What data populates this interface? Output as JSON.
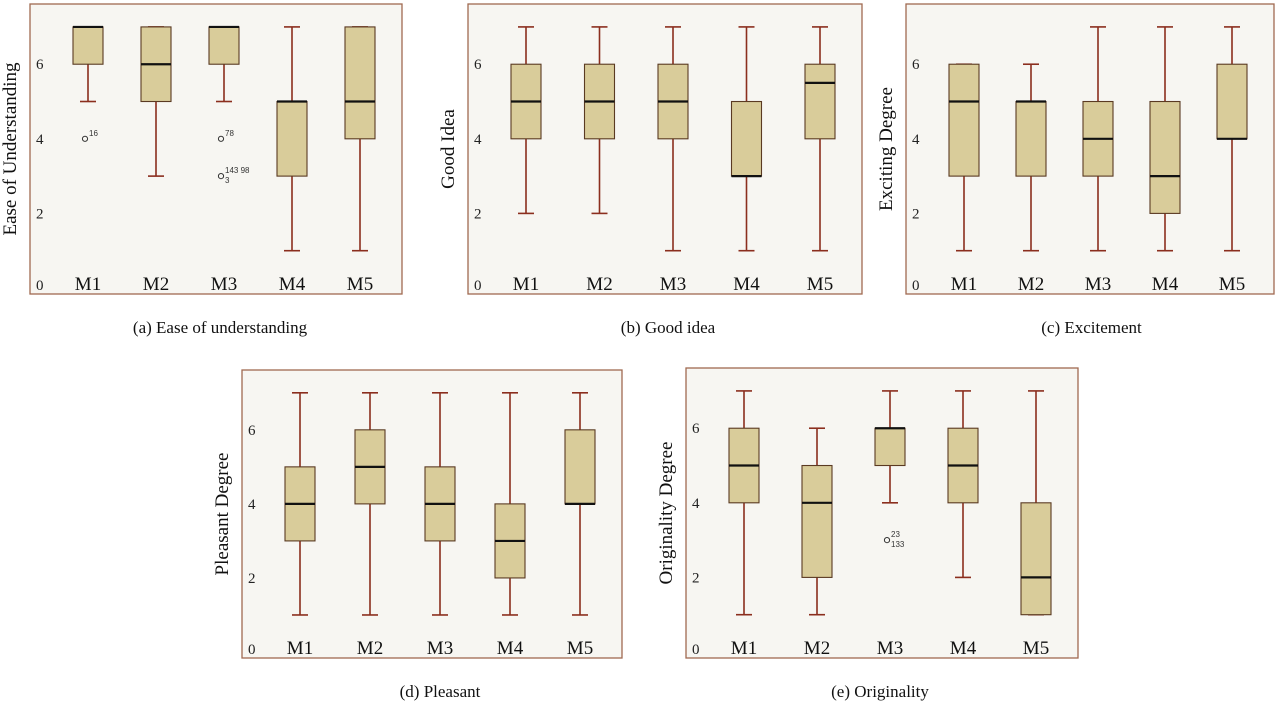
{
  "chart_data": [
    {
      "type": "box",
      "caption": "(a)  Ease of understanding",
      "ylabel": "Ease of Understanding",
      "yticks": [
        "0",
        "2",
        "4",
        "6"
      ],
      "ylim": [
        0,
        7.4
      ],
      "categories": [
        "M1",
        "M2",
        "M3",
        "M4",
        "M5"
      ],
      "boxes": [
        {
          "min": 5,
          "q1": 6,
          "median": 7,
          "q3": 7,
          "max": 7,
          "outliers": [
            {
              "value": 4,
              "label": "16"
            }
          ]
        },
        {
          "min": 3,
          "q1": 5,
          "median": 6,
          "q3": 7,
          "max": 7,
          "outliers": []
        },
        {
          "min": 5,
          "q1": 6,
          "median": 7,
          "q3": 7,
          "max": 7,
          "outliers": [
            {
              "value": 4,
              "label": "78"
            },
            {
              "value": 3,
              "label": "143 98"
            },
            {
              "value": 3,
              "label": "3"
            }
          ]
        },
        {
          "min": 1,
          "q1": 3,
          "median": 5,
          "q3": 5,
          "max": 7,
          "outliers": []
        },
        {
          "min": 1,
          "q1": 4,
          "median": 5,
          "q3": 7,
          "max": 7,
          "outliers": []
        }
      ]
    },
    {
      "type": "box",
      "caption": "(b)  Good idea",
      "ylabel": "Good Idea",
      "yticks": [
        "0",
        "2",
        "4",
        "6"
      ],
      "ylim": [
        0,
        7.4
      ],
      "categories": [
        "M1",
        "M2",
        "M3",
        "M4",
        "M5"
      ],
      "boxes": [
        {
          "min": 2,
          "q1": 4,
          "median": 5,
          "q3": 6,
          "max": 7,
          "outliers": []
        },
        {
          "min": 2,
          "q1": 4,
          "median": 5,
          "q3": 6,
          "max": 7,
          "outliers": []
        },
        {
          "min": 1,
          "q1": 4,
          "median": 5,
          "q3": 6,
          "max": 7,
          "outliers": []
        },
        {
          "min": 1,
          "q1": 3,
          "median": 3,
          "q3": 5,
          "max": 7,
          "outliers": []
        },
        {
          "min": 1,
          "q1": 4,
          "median": 5.5,
          "q3": 6,
          "max": 7,
          "outliers": []
        }
      ]
    },
    {
      "type": "box",
      "caption": "(c)  Excitement",
      "ylabel": "Exciting Degree",
      "yticks": [
        "0",
        "2",
        "4",
        "6"
      ],
      "ylim": [
        0,
        7.4
      ],
      "categories": [
        "M1",
        "M2",
        "M3",
        "M4",
        "M5"
      ],
      "boxes": [
        {
          "min": 1,
          "q1": 3,
          "median": 5,
          "q3": 6,
          "max": 6,
          "outliers": []
        },
        {
          "min": 1,
          "q1": 3,
          "median": 5,
          "q3": 5,
          "max": 6,
          "outliers": []
        },
        {
          "min": 1,
          "q1": 3,
          "median": 4,
          "q3": 5,
          "max": 7,
          "outliers": []
        },
        {
          "min": 1,
          "q1": 2,
          "median": 3,
          "q3": 5,
          "max": 7,
          "outliers": []
        },
        {
          "min": 1,
          "q1": 4,
          "median": 4,
          "q3": 6,
          "max": 7,
          "outliers": []
        }
      ]
    },
    {
      "type": "box",
      "caption": "(d)  Pleasant",
      "ylabel": "Pleasant Degree",
      "yticks": [
        "0",
        "2",
        "4",
        "6"
      ],
      "ylim": [
        0,
        7.4
      ],
      "categories": [
        "M1",
        "M2",
        "M3",
        "M4",
        "M5"
      ],
      "boxes": [
        {
          "min": 1,
          "q1": 3,
          "median": 4,
          "q3": 5,
          "max": 7,
          "outliers": []
        },
        {
          "min": 1,
          "q1": 4,
          "median": 5,
          "q3": 6,
          "max": 7,
          "outliers": []
        },
        {
          "min": 1,
          "q1": 3,
          "median": 4,
          "q3": 5,
          "max": 7,
          "outliers": []
        },
        {
          "min": 1,
          "q1": 2,
          "median": 3,
          "q3": 4,
          "max": 7,
          "outliers": []
        },
        {
          "min": 1,
          "q1": 4,
          "median": 4,
          "q3": 6,
          "max": 7,
          "outliers": []
        }
      ]
    },
    {
      "type": "box",
      "caption": "(e)  Originality",
      "ylabel": "Originality Degree",
      "yticks": [
        "0",
        "2",
        "4",
        "6"
      ],
      "ylim": [
        0,
        7.4
      ],
      "categories": [
        "M1",
        "M2",
        "M3",
        "M4",
        "M5"
      ],
      "boxes": [
        {
          "min": 1,
          "q1": 4,
          "median": 5,
          "q3": 6,
          "max": 7,
          "outliers": []
        },
        {
          "min": 1,
          "q1": 2,
          "median": 4,
          "q3": 5,
          "max": 6,
          "outliers": []
        },
        {
          "min": 4,
          "q1": 5,
          "median": 6,
          "q3": 6,
          "max": 7,
          "outliers": [
            {
              "value": 3,
              "label": "23"
            },
            {
              "value": 3,
              "label": "133"
            }
          ]
        },
        {
          "min": 2,
          "q1": 4,
          "median": 5,
          "q3": 6,
          "max": 7,
          "outliers": []
        },
        {
          "min": 1,
          "q1": 1,
          "median": 2,
          "q3": 4,
          "max": 7,
          "outliers": []
        }
      ]
    }
  ],
  "colors": {
    "box_fill": "#d9cc9a",
    "box_stroke": "#5a3a22",
    "whisker": "#8b2e1e",
    "frame": "#a06a50"
  }
}
